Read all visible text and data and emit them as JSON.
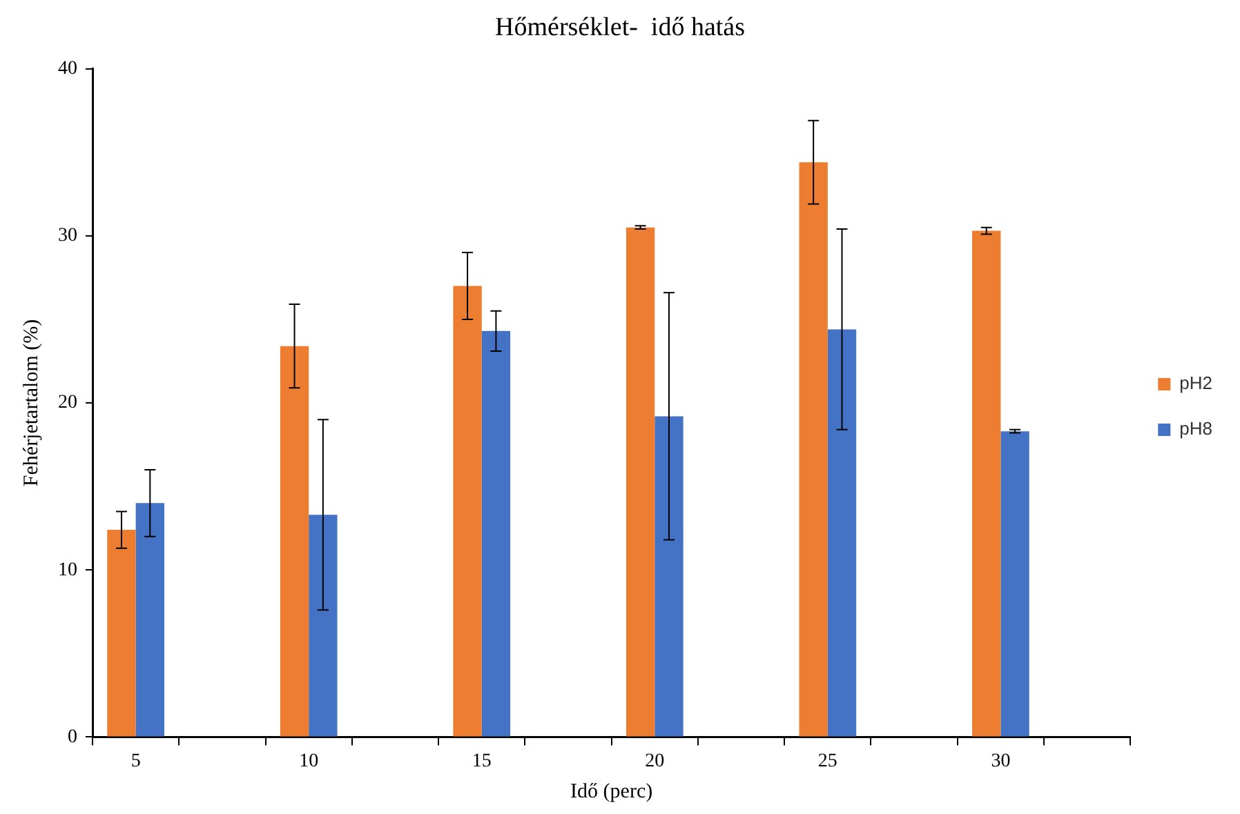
{
  "chart_data": {
    "type": "bar",
    "title": "Hőmérséklet-  idő hatás",
    "xlabel": "Idő (perc)",
    "ylabel": "Fehérjetartalom (%)",
    "categories": [
      "5",
      null,
      "10",
      null,
      "15",
      null,
      "20",
      null,
      "25",
      null,
      "30",
      null
    ],
    "series": [
      {
        "name": "pH2",
        "color": "#ed7d31",
        "values": [
          12.4,
          null,
          23.4,
          null,
          27.0,
          null,
          30.5,
          null,
          34.4,
          null,
          30.3,
          null
        ],
        "errors": [
          1.1,
          null,
          2.5,
          null,
          2.0,
          null,
          0.1,
          null,
          2.5,
          null,
          0.2,
          null
        ]
      },
      {
        "name": "pH8",
        "color": "#4472c4",
        "values": [
          14.0,
          null,
          13.3,
          null,
          24.3,
          null,
          19.2,
          null,
          24.4,
          null,
          18.3,
          null
        ],
        "errors": [
          2.0,
          null,
          5.7,
          null,
          1.2,
          null,
          7.4,
          null,
          6.0,
          null,
          0.1,
          null
        ]
      }
    ],
    "ylim": [
      0,
      40
    ],
    "yticks": [
      0,
      10,
      20,
      30,
      40
    ],
    "grid": false,
    "legend": "right"
  }
}
